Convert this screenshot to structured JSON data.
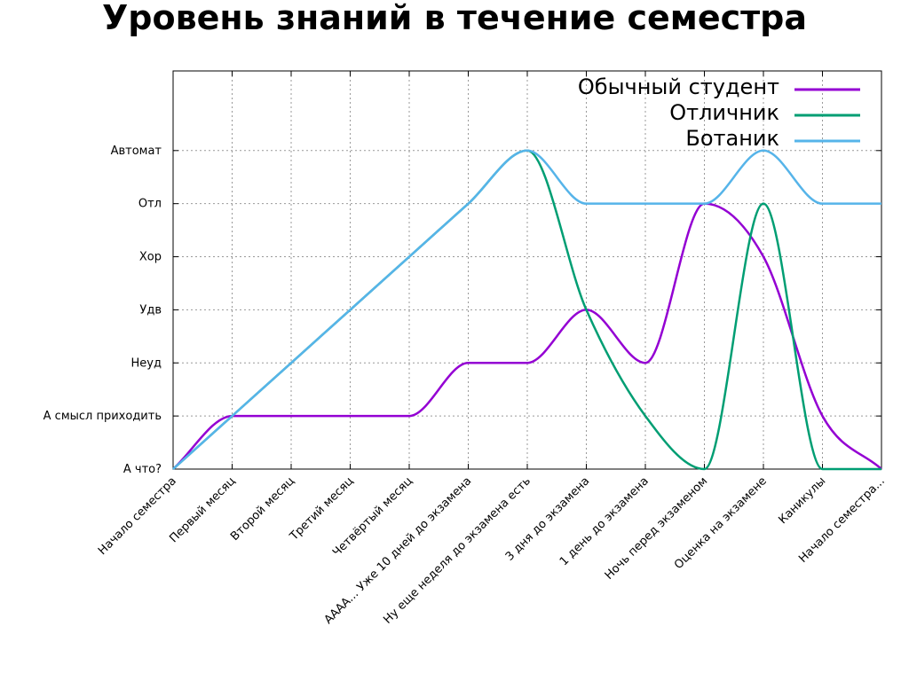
{
  "chart_data": {
    "type": "line",
    "title": "Уровень знаний в течение семестра",
    "xlabel": "",
    "ylabel": "",
    "categories": [
      "Начало семестра",
      "Первый месяц",
      "Второй месяц",
      "Третий месяц",
      "Четвёртый месяц",
      "АААА... Уже 10 дней до экзамена",
      "Ну еще неделя до экзамена есть",
      "3 дня до экзамена",
      "1 день до экзамена",
      "Ночь перед экзаменом",
      "Оценка на экзамене",
      "Каникулы",
      "Начало семестра..."
    ],
    "y_levels": [
      "А что?",
      "А смысл приходить",
      "Неуд",
      "Удв",
      "Хор",
      "Отл",
      "Автомат"
    ],
    "ylim": [
      0,
      7.5
    ],
    "grid": true,
    "legend_position": "top-right",
    "series": [
      {
        "name": "Обычный студент",
        "color": "#9400d3",
        "values": [
          0,
          1,
          1,
          1,
          1,
          2,
          2,
          3,
          2,
          5,
          4,
          1,
          0
        ]
      },
      {
        "name": "Отличник",
        "color": "#009e73",
        "values": [
          0,
          1,
          2,
          3,
          4,
          5,
          6,
          3,
          1,
          0,
          5,
          0,
          0
        ]
      },
      {
        "name": "Ботаник",
        "color": "#56b4e9",
        "values": [
          0,
          1,
          2,
          3,
          4,
          5,
          6,
          5,
          5,
          5,
          6,
          5,
          5
        ]
      }
    ]
  }
}
